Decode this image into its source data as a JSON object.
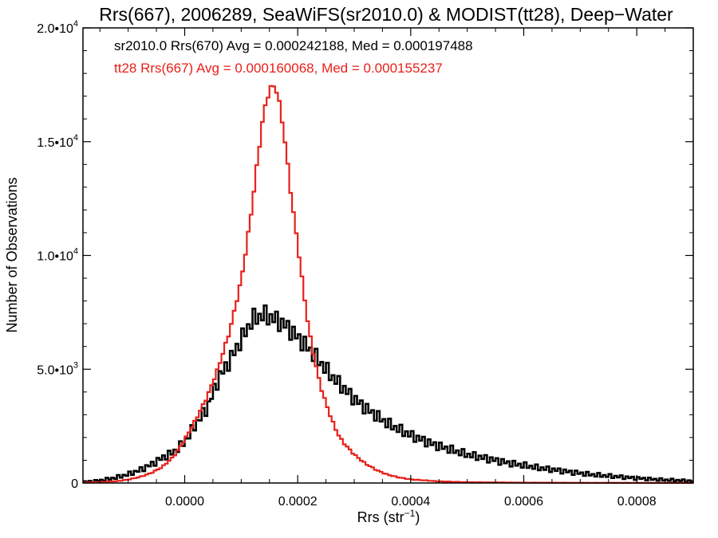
{
  "chart_data": {
    "type": "histogram-step",
    "title": "Rrs(667), 2006289, SeaWiFS(sr2010.0) & MODIST(tt28), Deep−Water",
    "xlabel": {
      "base": "Rrs (str",
      "sup": "−1",
      "tail": ")"
    },
    "ylabel": "Number of Observations",
    "xlim": [
      -0.00018,
      0.0009
    ],
    "ylim": [
      0,
      20000
    ],
    "x_ticks": [
      0.0,
      0.0002,
      0.0004,
      0.0006,
      0.0008
    ],
    "x_tick_labels": [
      "0.0000",
      "0.0002",
      "0.0004",
      "0.0006",
      "0.0008"
    ],
    "y_ticks": [
      0,
      5000,
      10000,
      15000,
      20000
    ],
    "y_tick_labels": [
      {
        "base": "0",
        "sup": ""
      },
      {
        "base": "5.0•10",
        "sup": "3"
      },
      {
        "base": "1.0•10",
        "sup": "4"
      },
      {
        "base": "1.5•10",
        "sup": "4"
      },
      {
        "base": "2.0•10",
        "sup": "4"
      }
    ],
    "series": [
      {
        "name": "sr2010.0 Rrs(670)",
        "legend_text": "sr2010.0 Rrs(670) Avg = 0.000242188, Med = 0.000197488",
        "color": "#000000",
        "points": [
          [
            -0.00018,
            50
          ],
          [
            -0.00016,
            80
          ],
          [
            -0.00014,
            150
          ],
          [
            -0.00012,
            250
          ],
          [
            -0.0001,
            380
          ],
          [
            -8e-05,
            560
          ],
          [
            -6e-05,
            800
          ],
          [
            -4e-05,
            1100
          ],
          [
            -2e-05,
            1350
          ],
          [
            0.0,
            1800
          ],
          [
            2e-05,
            2600
          ],
          [
            4e-05,
            3300
          ],
          [
            6e-05,
            4600
          ],
          [
            8e-05,
            5400
          ],
          [
            0.0001,
            6300
          ],
          [
            0.00012,
            7200
          ],
          [
            0.00014,
            7400
          ],
          [
            0.00016,
            7200
          ],
          [
            0.00018,
            6900
          ],
          [
            0.0002,
            6400
          ],
          [
            0.00022,
            5900
          ],
          [
            0.00024,
            5300
          ],
          [
            0.00026,
            4700
          ],
          [
            0.00028,
            4200
          ],
          [
            0.0003,
            3700
          ],
          [
            0.00032,
            3300
          ],
          [
            0.00034,
            2950
          ],
          [
            0.00036,
            2600
          ],
          [
            0.00038,
            2350
          ],
          [
            0.0004,
            2100
          ],
          [
            0.00042,
            1900
          ],
          [
            0.00044,
            1700
          ],
          [
            0.00046,
            1550
          ],
          [
            0.00048,
            1400
          ],
          [
            0.0005,
            1250
          ],
          [
            0.00052,
            1150
          ],
          [
            0.00054,
            1050
          ],
          [
            0.00056,
            950
          ],
          [
            0.00058,
            850
          ],
          [
            0.0006,
            780
          ],
          [
            0.00062,
            690
          ],
          [
            0.00064,
            620
          ],
          [
            0.00066,
            560
          ],
          [
            0.00068,
            490
          ],
          [
            0.0007,
            430
          ],
          [
            0.00072,
            370
          ],
          [
            0.00074,
            330
          ],
          [
            0.00076,
            290
          ],
          [
            0.00078,
            250
          ],
          [
            0.0008,
            210
          ],
          [
            0.00082,
            180
          ],
          [
            0.00084,
            150
          ],
          [
            0.00086,
            130
          ],
          [
            0.00088,
            110
          ],
          [
            0.0009,
            90
          ]
        ]
      },
      {
        "name": "tt28 Rrs(667)",
        "legend_text": "tt28 Rrs(667) Avg = 0.000160068, Med = 0.000155237",
        "color": "#e8201a",
        "points": [
          [
            -0.00018,
            20
          ],
          [
            -0.00015,
            40
          ],
          [
            -0.00012,
            80
          ],
          [
            -0.0001,
            150
          ],
          [
            -8e-05,
            260
          ],
          [
            -6e-05,
            430
          ],
          [
            -4e-05,
            700
          ],
          [
            -2e-05,
            1150
          ],
          [
            0.0,
            1900
          ],
          [
            2e-05,
            2800
          ],
          [
            4e-05,
            3800
          ],
          [
            6e-05,
            5100
          ],
          [
            8e-05,
            6700
          ],
          [
            0.0001,
            8900
          ],
          [
            0.00011,
            10500
          ],
          [
            0.00012,
            12300
          ],
          [
            0.00013,
            14400
          ],
          [
            0.00014,
            16300
          ],
          [
            0.00015,
            17300
          ],
          [
            0.00016,
            17500
          ],
          [
            0.00017,
            16400
          ],
          [
            0.00018,
            14500
          ],
          [
            0.00019,
            12300
          ],
          [
            0.0002,
            10500
          ],
          [
            0.00021,
            8500
          ],
          [
            0.00022,
            6700
          ],
          [
            0.00023,
            5400
          ],
          [
            0.00024,
            4300
          ],
          [
            0.00025,
            3500
          ],
          [
            0.00026,
            2800
          ],
          [
            0.00027,
            2200
          ],
          [
            0.00028,
            1800
          ],
          [
            0.0003,
            1250
          ],
          [
            0.00032,
            850
          ],
          [
            0.00034,
            560
          ],
          [
            0.00036,
            360
          ],
          [
            0.00038,
            240
          ],
          [
            0.0004,
            160
          ],
          [
            0.00045,
            70
          ],
          [
            0.0005,
            35
          ],
          [
            0.0006,
            15
          ],
          [
            0.0007,
            8
          ],
          [
            0.0009,
            4
          ]
        ]
      }
    ],
    "legend_position": "top-left",
    "grid": false
  }
}
